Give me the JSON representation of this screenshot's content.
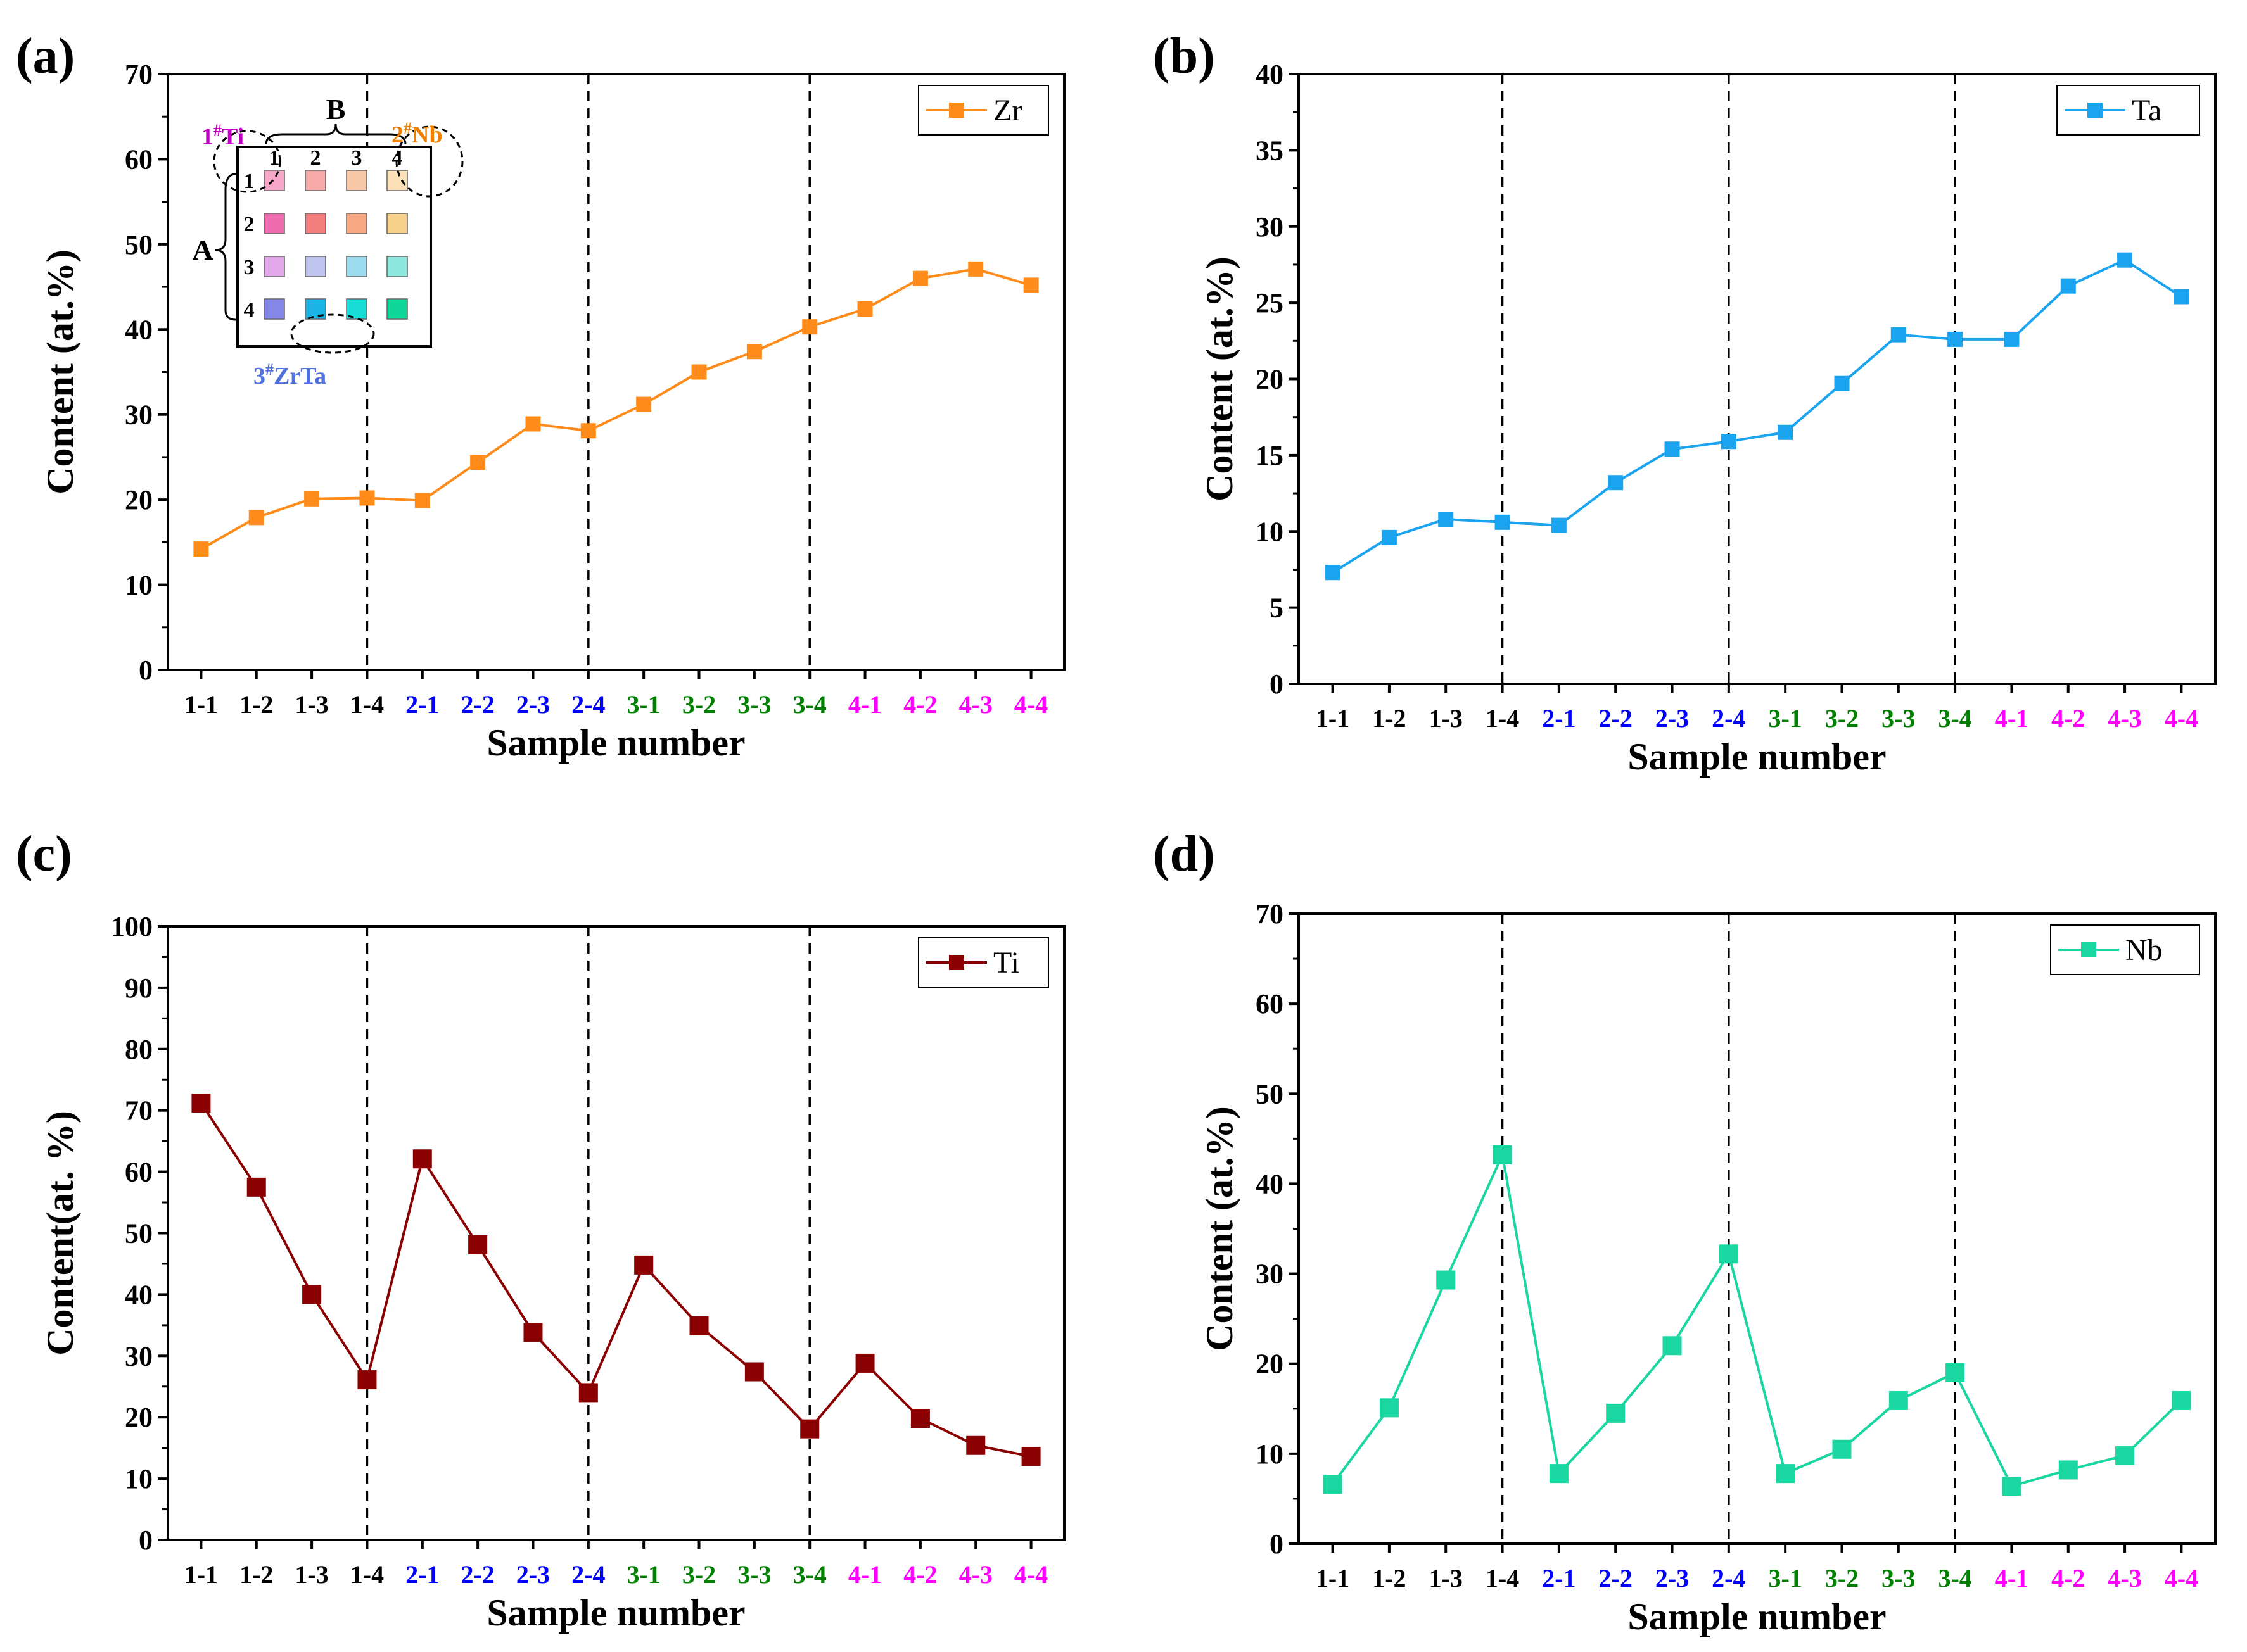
{
  "colors": {
    "group1": "#000000",
    "group2": "#0000ff",
    "group3": "#008000",
    "group4": "#ff00ff",
    "Zr": "#ff8c1a",
    "Ta": "#1aa3ef",
    "Ti": "#8b0000",
    "Nb": "#1ad6a0"
  },
  "panels": [
    {
      "letter": "(a)"
    },
    {
      "letter": "(b)"
    },
    {
      "letter": "(c)"
    },
    {
      "letter": "(d)"
    }
  ],
  "inset": {
    "label_B": "B",
    "label_A": "A",
    "col_labels": [
      "1",
      "2",
      "3",
      "4"
    ],
    "row_labels": [
      "1",
      "2",
      "3",
      "4"
    ],
    "target_ti_base": "1",
    "target_ti_sup": "#",
    "target_ti_name": "Ti",
    "target_nb_base": "2",
    "target_nb_sup": "#",
    "target_nb_name": "Nb",
    "target_zrta_base": "3",
    "target_zrta_sup": "#",
    "target_zrta_name": "ZrTa",
    "cell_colors": [
      [
        "#f7a8c8",
        "#f7aaa8",
        "#f9c8a8",
        "#fbe0b8"
      ],
      [
        "#f06cb0",
        "#f47d7d",
        "#f7a882",
        "#f7d08a"
      ],
      [
        "#e2a8ea",
        "#bfc4ef",
        "#9ddcef",
        "#8de8e0"
      ],
      [
        "#8486e8",
        "#1cb4e6",
        "#18dcd6",
        "#10d69a"
      ]
    ]
  },
  "chart_data": [
    {
      "type": "line",
      "panel": "(a)",
      "xlabel": "Sample number",
      "ylabel": "Content (at.%)",
      "categories": [
        "1-1",
        "1-2",
        "1-3",
        "1-4",
        "2-1",
        "2-2",
        "2-3",
        "2-4",
        "3-1",
        "3-2",
        "3-3",
        "3-4",
        "4-1",
        "4-2",
        "4-3",
        "4-4"
      ],
      "ylim": [
        0,
        70
      ],
      "yticks": [
        "0",
        "10",
        "20",
        "30",
        "40",
        "50",
        "60",
        "70"
      ],
      "series": [
        {
          "name": "Zr",
          "values": [
            14.2,
            17.9,
            20.1,
            20.2,
            19.9,
            24.4,
            28.9,
            28.1,
            31.2,
            35.0,
            37.4,
            40.3,
            42.4,
            46.0,
            47.1,
            45.2
          ]
        }
      ],
      "dividers_after": [
        "1-4",
        "2-4",
        "3-4"
      ],
      "legend_position": "top-right",
      "marker": "square"
    },
    {
      "type": "line",
      "panel": "(b)",
      "xlabel": "Sample number",
      "ylabel": "Content (at.%)",
      "categories": [
        "1-1",
        "1-2",
        "1-3",
        "1-4",
        "2-1",
        "2-2",
        "2-3",
        "2-4",
        "3-1",
        "3-2",
        "3-3",
        "3-4",
        "4-1",
        "4-2",
        "4-3",
        "4-4"
      ],
      "ylim": [
        0,
        40
      ],
      "yticks": [
        "0",
        "5",
        "10",
        "15",
        "20",
        "25",
        "30",
        "35",
        "40"
      ],
      "series": [
        {
          "name": "Ta",
          "values": [
            7.3,
            9.6,
            10.8,
            10.6,
            10.4,
            13.2,
            15.4,
            15.9,
            16.5,
            19.7,
            22.9,
            22.6,
            22.6,
            26.1,
            27.8,
            25.4
          ]
        }
      ],
      "dividers_after": [
        "1-4",
        "2-4",
        "3-4"
      ],
      "legend_position": "top-right",
      "marker": "square"
    },
    {
      "type": "line",
      "panel": "(c)",
      "xlabel": "Sample number",
      "ylabel": "Content(at. %)",
      "categories": [
        "1-1",
        "1-2",
        "1-3",
        "1-4",
        "2-1",
        "2-2",
        "2-3",
        "2-4",
        "3-1",
        "3-2",
        "3-3",
        "3-4",
        "4-1",
        "4-2",
        "4-3",
        "4-4"
      ],
      "ylim": [
        0,
        100
      ],
      "yticks": [
        "0",
        "10",
        "20",
        "30",
        "40",
        "50",
        "60",
        "70",
        "80",
        "90",
        "100"
      ],
      "series": [
        {
          "name": "Ti",
          "values": [
            71.2,
            57.5,
            40.0,
            26.1,
            62.1,
            48.1,
            33.8,
            24.0,
            44.8,
            34.9,
            27.4,
            18.1,
            28.8,
            19.8,
            15.4,
            13.6
          ]
        }
      ],
      "dividers_after": [
        "1-4",
        "2-4",
        "3-4"
      ],
      "legend_position": "top-right",
      "marker": "square"
    },
    {
      "type": "line",
      "panel": "(d)",
      "xlabel": "Sample number",
      "ylabel": "Content (at.%)",
      "categories": [
        "1-1",
        "1-2",
        "1-3",
        "1-4",
        "2-1",
        "2-2",
        "2-3",
        "2-4",
        "3-1",
        "3-2",
        "3-3",
        "3-4",
        "4-1",
        "4-2",
        "4-3",
        "4-4"
      ],
      "ylim": [
        0,
        70
      ],
      "yticks": [
        "0",
        "10",
        "20",
        "30",
        "40",
        "50",
        "60",
        "70"
      ],
      "series": [
        {
          "name": "Nb",
          "values": [
            6.6,
            15.1,
            29.3,
            43.2,
            7.8,
            14.5,
            22.0,
            32.2,
            7.8,
            10.5,
            15.9,
            19.0,
            6.4,
            8.2,
            9.8,
            15.9
          ]
        }
      ],
      "dividers_after": [
        "1-4",
        "2-4",
        "3-4"
      ],
      "legend_position": "top-right",
      "marker": "square"
    }
  ]
}
